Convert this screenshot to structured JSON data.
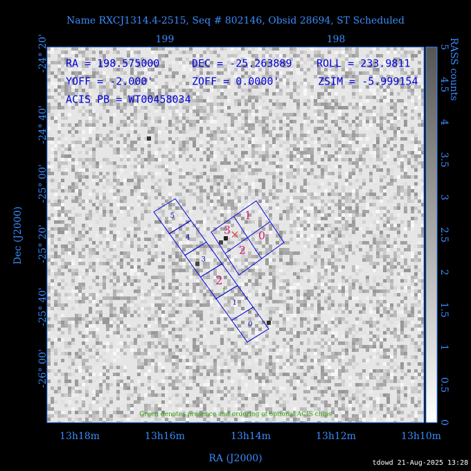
{
  "title": "Name RXCJ1314.4-2515, Seq # 802146, Obsid 28694, ST Scheduled",
  "axes": {
    "top": [
      "199",
      "198"
    ],
    "left": [
      "-24° 20'",
      "-24° 40'",
      "-25° 00'",
      "-25° 20'",
      "-25° 40'",
      "-26° 00'"
    ],
    "bottom": [
      "13h18m",
      "13h16m",
      "13h14m",
      "13h12m",
      "13h10m"
    ],
    "x_label": "RA (J2000)",
    "y_label": "Dec (J2000)"
  },
  "colorbar": {
    "label": "RASS counts",
    "ticks": [
      "0",
      "0.5",
      "1",
      "1.5",
      "2",
      "2.5",
      "3",
      "3.5",
      "4",
      "4.5",
      "5"
    ]
  },
  "info": [
    [
      "RA = 198.575000",
      "DEC = -25.263889",
      "ROLL = 233.9811"
    ],
    [
      "YOFF = -2.000'",
      "ZOFF = 0.0000'",
      "ZSIM = -5.999154"
    ],
    [
      "ACIS PB = WT00458034"
    ]
  ],
  "chips": {
    "s_array": [
      "5",
      "4",
      "3",
      "2",
      "1",
      "0"
    ],
    "i_array": [
      "3",
      "1",
      "2",
      "0"
    ],
    "optional_order": "1"
  },
  "note": "Green denotes presence and ordering of optional ACIS chips",
  "footer": "tdowd 21-Aug-2025 13:28"
}
